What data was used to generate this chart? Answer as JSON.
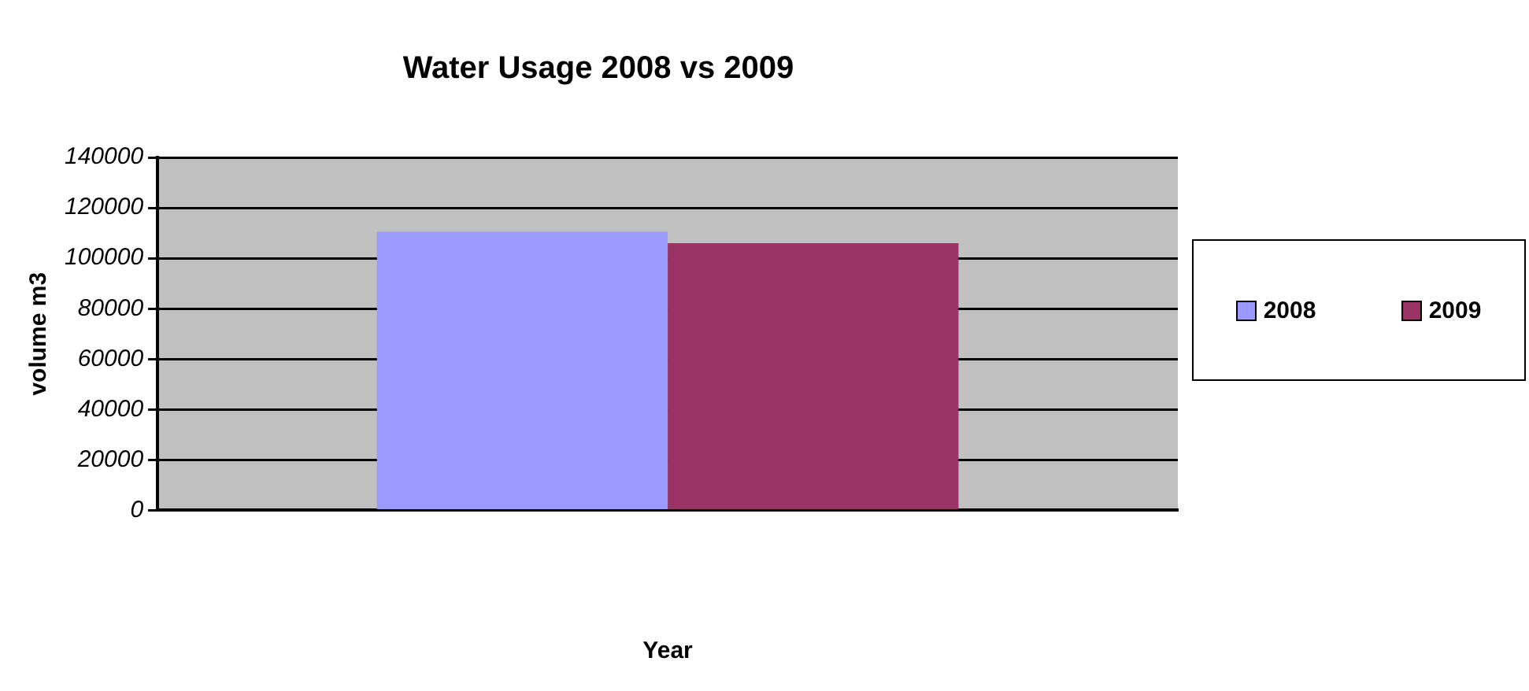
{
  "chart_data": {
    "type": "bar",
    "title": "Water Usage 2008 vs 2009",
    "xlabel": "Year",
    "ylabel": "volume m3",
    "categories": [
      null
    ],
    "series": [
      {
        "name": "2008",
        "color": "#9999ff",
        "values": [
          110500
        ]
      },
      {
        "name": "2009",
        "color": "#993366",
        "values": [
          106000
        ]
      }
    ],
    "ylim": [
      0,
      140000
    ],
    "yticks": [
      0,
      20000,
      40000,
      60000,
      80000,
      100000,
      120000,
      140000
    ],
    "grid": "y",
    "legend": "right"
  }
}
